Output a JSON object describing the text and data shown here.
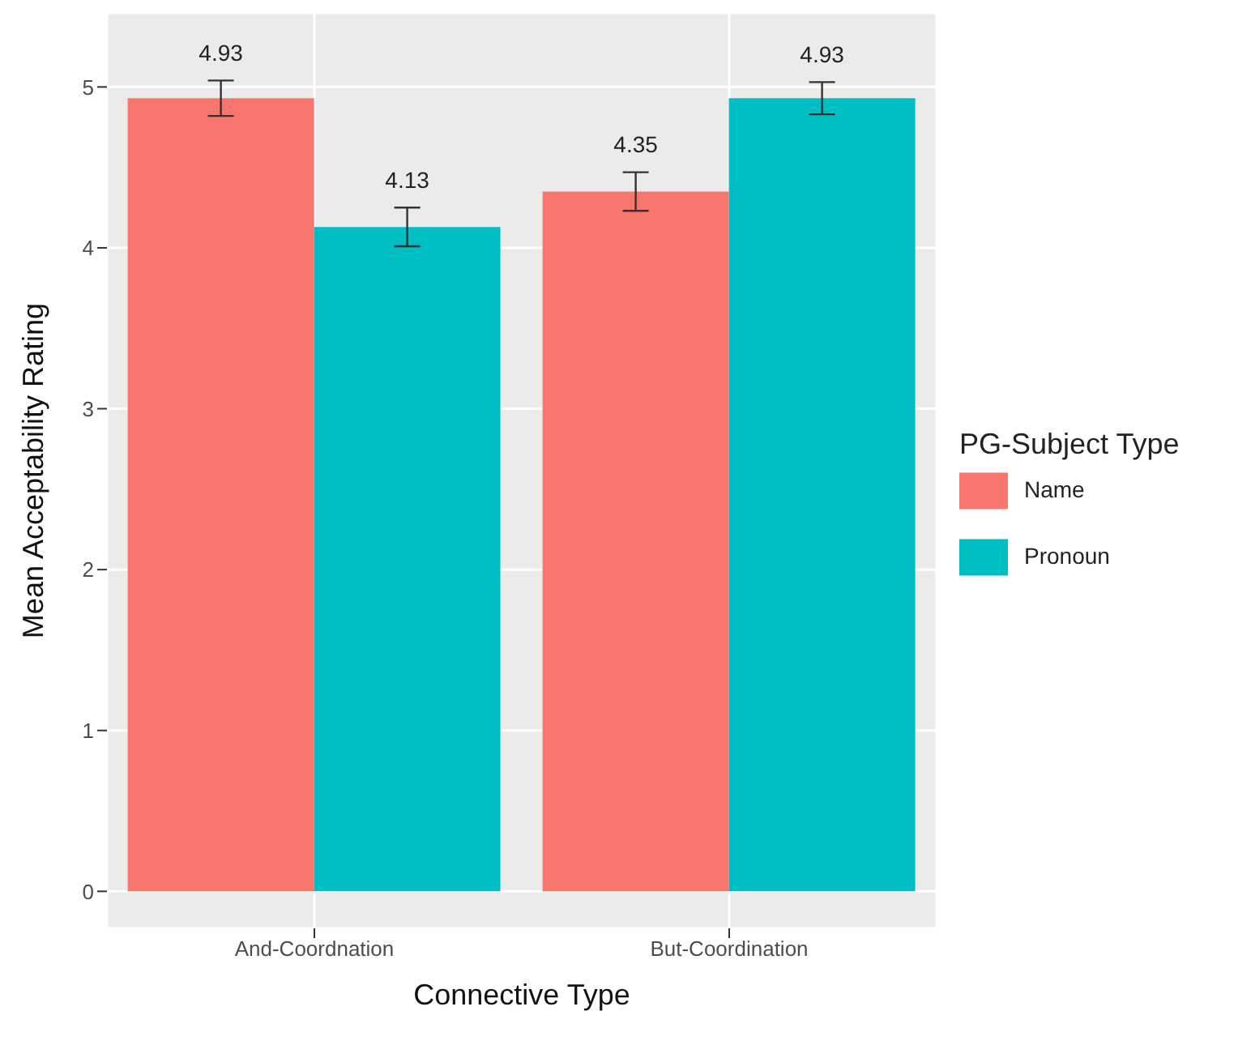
{
  "chart_data": {
    "type": "bar",
    "xlabel": "Connective Type",
    "ylabel": "Mean Acceptability Rating",
    "legend_title": "PG-Subject Type",
    "categories": [
      "And-Coordnation",
      "But-Coordination"
    ],
    "series": [
      {
        "name": "Name",
        "color": "#f8766d",
        "values": [
          4.93,
          4.35
        ],
        "errors": [
          0.11,
          0.12
        ]
      },
      {
        "name": "Pronoun",
        "color": "#00bfc4",
        "values": [
          4.13,
          4.93
        ],
        "errors": [
          0.12,
          0.1
        ]
      }
    ],
    "data_labels": true,
    "ylim": [
      -0.23,
      5.46
    ],
    "yticks": [
      0,
      1,
      2,
      3,
      4,
      5
    ],
    "grid": true,
    "legend": "right"
  }
}
